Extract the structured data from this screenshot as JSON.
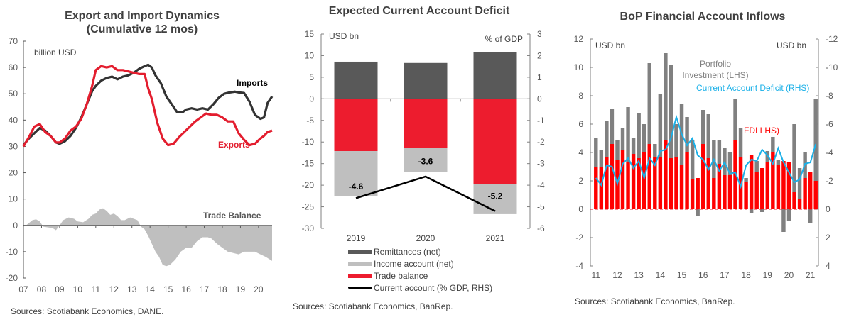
{
  "colors": {
    "exports": "#E31D2E",
    "imports": "#333333",
    "trade_balance_area": "#BFBFBF",
    "remittances": "#595959",
    "income": "#BFBFBF",
    "trade": "#ED1C2E",
    "current_account_line": "#000000",
    "portfolio": "#808080",
    "fdi": "#FF0000",
    "cad": "#1AB0E8",
    "axis": "#808080"
  },
  "chart_data": [
    {
      "type": "line",
      "title": "Export and Import Dynamics (Cumulative 12 mos)",
      "title_line1": "Export and Import Dynamics",
      "title_line2": "(Cumulative 12 mos)",
      "ylabel": "billion USD",
      "ylim": [
        -20,
        70
      ],
      "yticks": [
        "70",
        "60",
        "50",
        "40",
        "30",
        "20",
        "10",
        "0",
        "-10",
        "-20"
      ],
      "xticks": [
        "07",
        "08",
        "09",
        "10",
        "11",
        "12",
        "13",
        "14",
        "15",
        "16",
        "17",
        "18",
        "19",
        "20"
      ],
      "xlim": [
        2007.0,
        2020.75
      ],
      "source": "Sources: Scotiabank Economics, DANE.",
      "series": [
        {
          "name": "Imports",
          "label": "Imports",
          "x": [
            2007.0,
            2007.3,
            2007.6,
            2007.9,
            2008.2,
            2008.5,
            2008.8,
            2009.0,
            2009.3,
            2009.6,
            2009.9,
            2010.2,
            2010.5,
            2010.8,
            2011.0,
            2011.3,
            2011.6,
            2011.9,
            2012.2,
            2012.5,
            2012.8,
            2013.1,
            2013.4,
            2013.7,
            2013.9,
            2014.1,
            2014.3,
            2014.6,
            2014.9,
            2015.2,
            2015.5,
            2015.8,
            2016.0,
            2016.3,
            2016.6,
            2016.9,
            2017.2,
            2017.5,
            2017.8,
            2018.1,
            2018.4,
            2018.7,
            2018.9,
            2019.2,
            2019.5,
            2019.8,
            2020.1,
            2020.3,
            2020.5,
            2020.75
          ],
          "y": [
            30.5,
            33,
            35,
            37,
            36,
            34,
            31.5,
            31,
            32,
            34,
            37,
            41,
            46,
            51,
            53,
            55,
            56,
            56.5,
            55.5,
            56.5,
            57,
            58,
            59.5,
            60.5,
            61,
            60,
            57,
            54,
            49,
            46,
            43,
            43,
            44,
            44.5,
            44,
            44.5,
            44,
            46,
            48.5,
            50,
            50.5,
            50.8,
            50.5,
            50.3,
            47,
            42,
            40.5,
            41,
            46.5,
            49
          ]
        },
        {
          "name": "Exports",
          "label": "Exports",
          "x": [
            2007.0,
            2007.3,
            2007.6,
            2007.9,
            2008.2,
            2008.5,
            2008.8,
            2009.0,
            2009.3,
            2009.6,
            2009.9,
            2010.2,
            2010.5,
            2010.8,
            2011.0,
            2011.3,
            2011.6,
            2011.9,
            2012.2,
            2012.5,
            2012.8,
            2013.1,
            2013.4,
            2013.7,
            2013.9,
            2014.1,
            2014.4,
            2014.7,
            2015.0,
            2015.3,
            2015.6,
            2015.9,
            2016.2,
            2016.5,
            2016.8,
            2017.1,
            2017.4,
            2017.7,
            2018.0,
            2018.3,
            2018.6,
            2018.9,
            2019.2,
            2019.5,
            2019.8,
            2020.1,
            2020.3,
            2020.5,
            2020.75
          ],
          "y": [
            30,
            33.5,
            37.5,
            38.5,
            35.5,
            34,
            31.5,
            31.5,
            33,
            36,
            37.5,
            40.5,
            46,
            53,
            59,
            60.5,
            60,
            60.5,
            59,
            59,
            58.5,
            58,
            57.5,
            57.5,
            52,
            48,
            39,
            33,
            30.5,
            31,
            33.5,
            35.5,
            37.5,
            39.5,
            41,
            42.5,
            42,
            42,
            41,
            39.5,
            39.5,
            35,
            32.5,
            30.5,
            31,
            33,
            34,
            35.5,
            36
          ]
        },
        {
          "name": "Trade Balance",
          "label": "Trade Balance",
          "type": "area",
          "x": [
            2007.0,
            2007.2,
            2007.5,
            2007.7,
            2007.9,
            2008.1,
            2008.4,
            2008.6,
            2008.8,
            2009.0,
            2009.2,
            2009.5,
            2009.8,
            2010.0,
            2010.3,
            2010.6,
            2010.8,
            2011.0,
            2011.2,
            2011.4,
            2011.6,
            2011.8,
            2012.0,
            2012.2,
            2012.4,
            2012.6,
            2012.9,
            2013.1,
            2013.3,
            2013.5,
            2013.7,
            2013.9,
            2014.1,
            2014.3,
            2014.5,
            2014.7,
            2014.9,
            2015.1,
            2015.4,
            2015.7,
            2016.0,
            2016.3,
            2016.6,
            2016.9,
            2017.2,
            2017.4,
            2017.7,
            2018.0,
            2018.3,
            2018.6,
            2018.9,
            2019.2,
            2019.5,
            2019.8,
            2020.1,
            2020.4,
            2020.75
          ],
          "y": [
            -0.5,
            0.3,
            2,
            2.3,
            1.5,
            -0.5,
            -0.8,
            -1,
            -1.8,
            0,
            2,
            3,
            2.5,
            1.5,
            1.2,
            2.5,
            4,
            4.5,
            6,
            6.5,
            5.5,
            4,
            4.5,
            3.5,
            2,
            2,
            3,
            2.5,
            2,
            -0.5,
            -1.5,
            -4,
            -7,
            -10,
            -12,
            -15,
            -15.5,
            -15,
            -13,
            -10,
            -8.5,
            -8.5,
            -6,
            -4.5,
            -4.5,
            -5,
            -7,
            -8.5,
            -10,
            -10.5,
            -11,
            -10,
            -10,
            -10,
            -11,
            -12,
            -13.5
          ]
        }
      ]
    },
    {
      "type": "bar",
      "stacked": true,
      "title": "Expected Current Account Deficit",
      "ylabel": "USD bn",
      "y2label": "% of GDP",
      "ylim": [
        -30,
        15
      ],
      "y2lim": [
        -6,
        3
      ],
      "yticks": [
        "15",
        "10",
        "5",
        "0",
        "-5",
        "-10",
        "-15",
        "-20",
        "-25",
        "-30"
      ],
      "y2ticks": [
        "3",
        "2",
        "1",
        "0",
        "-1",
        "-2",
        "-3",
        "-4",
        "-5",
        "-6"
      ],
      "categories": [
        "2019",
        "2020",
        "2021"
      ],
      "series": [
        {
          "name": "Remittances (net)",
          "values": [
            8.6,
            8.3,
            10.8
          ]
        },
        {
          "name": "Income account (net)",
          "values": [
            -10.4,
            -5.6,
            -7.0
          ]
        },
        {
          "name": "Trade balance",
          "values": [
            -12.1,
            -11.3,
            -19.7
          ]
        },
        {
          "name": "Current account (% GDP, RHS)",
          "type": "line",
          "axis": "right",
          "values": [
            -4.6,
            -3.6,
            -5.2
          ]
        }
      ],
      "data_labels": [
        "-4.6",
        "-3.6",
        "-5.2"
      ],
      "source": "Sources: Scotiabank Economics, BanRep."
    },
    {
      "type": "bar",
      "title": "BoP Financial Account Inflows",
      "ylabel": "USD bn",
      "y2label": "USD bn",
      "ylim": [
        -4,
        12
      ],
      "y2lim": [
        4,
        -12
      ],
      "yticks": [
        "12",
        "10",
        "8",
        "6",
        "4",
        "2",
        "0",
        "-2",
        "-4"
      ],
      "y2ticks": [
        "-12",
        "-10",
        "-8",
        "-6",
        "-4",
        "-2",
        "0",
        "2",
        "4"
      ],
      "xticks": [
        "11",
        "12",
        "13",
        "14",
        "15",
        "16",
        "17",
        "18",
        "19",
        "20",
        "21"
      ],
      "annotations": [
        "Portfolio",
        "Investment (LHS)",
        "Current Account Deficit (RHS)",
        "FDI LHS)"
      ],
      "series": [
        {
          "name": "FDI (LHS)",
          "values": [
            3.0,
            3.0,
            3.7,
            4.6,
            3.5,
            4.2,
            3.3,
            3.9,
            3.6,
            4.0,
            4.6,
            3.7,
            3.7,
            4.9,
            3.6,
            3.7,
            3.1,
            4.0,
            2.1,
            2.2,
            4.6,
            3.6,
            2.2,
            3.2,
            2.4,
            2.4,
            4.9,
            3.7,
            1.9,
            3.8,
            2.6,
            2.9,
            3.3,
            4.0,
            3.1,
            3.4,
            3.3,
            1.2,
            0.7,
            2.2,
            2.6,
            2.0
          ]
        },
        {
          "name": "Portfolio Investment (LHS)",
          "values": [
            2.0,
            1.2,
            2.5,
            2.5,
            1.4,
            1.5,
            3.9,
            1.1,
            3.2,
            2.0,
            5.7,
            0.9,
            4.4,
            6.1,
            6.6,
            2.3,
            4.3,
            2.5,
            2.8,
            -0.5,
            2.4,
            3.1,
            2.7,
            1.7,
            1.9,
            1.6,
            2.9,
            2.0,
            0.3,
            -0.3,
            0.8,
            -0.2,
            0.8,
            1.1,
            0.4,
            -1.6,
            -0.8,
            4.8,
            2.2,
            1.8,
            -1.0,
            5.8
          ]
        },
        {
          "name": "Current Account Deficit (RHS)",
          "type": "line",
          "axis": "right",
          "values": [
            -2.2,
            -1.7,
            -3.1,
            -3.0,
            -1.8,
            -3.2,
            -3.6,
            -2.9,
            -3.4,
            -2.2,
            -3.6,
            -3.1,
            -4.1,
            -4.2,
            -5.0,
            -6.5,
            -5.3,
            -4.5,
            -5.0,
            -3.8,
            -3.5,
            -2.8,
            -3.5,
            -2.7,
            -3.3,
            -2.5,
            -2.6,
            -1.6,
            -3.1,
            -3.5,
            -3.4,
            -4.2,
            -3.8,
            -3.2,
            -4.3,
            -3.3,
            -2.6,
            -1.9,
            -2.1,
            -3.2,
            -3.3,
            -4.6
          ]
        }
      ],
      "source": "Sources: Scotiabank Economics, BanRep."
    }
  ]
}
